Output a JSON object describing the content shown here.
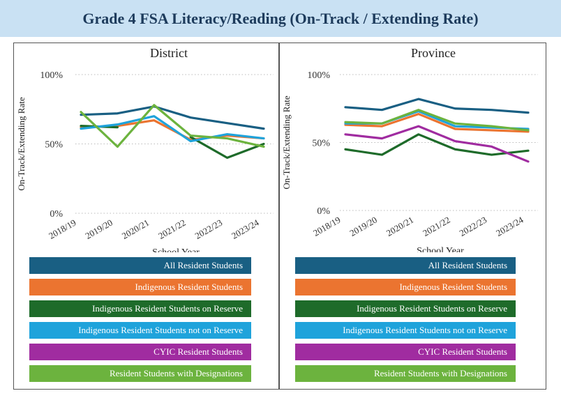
{
  "title": "Grade 4 FSA Literacy/Reading (On-Track / Extending Rate)",
  "legend": [
    {
      "name": "All Resident Students",
      "color": "#195f83"
    },
    {
      "name": "Indigenous Resident Students",
      "color": "#eb7430"
    },
    {
      "name": "Indigenous Resident Students on Reserve",
      "color": "#1e6b2a"
    },
    {
      "name": "Indigenous Resident Students not on Reserve",
      "color": "#1fa3db"
    },
    {
      "name": "CYIC Resident Students",
      "color": "#a02ca0"
    },
    {
      "name": "Resident Students with Designations",
      "color": "#6cb33e"
    }
  ],
  "chart_data": [
    {
      "type": "line",
      "title": "District",
      "xlabel": "School Year",
      "ylabel": "On-Track/Extending Rate",
      "categories": [
        "2018/19",
        "2019/20",
        "2020/21",
        "2021/22",
        "2022/23",
        "2023/24"
      ],
      "yticks": [
        "0%",
        "50%",
        "100%"
      ],
      "ylim": [
        0,
        100
      ],
      "series": [
        {
          "name": "All Resident Students",
          "color": "#195f83",
          "values": [
            71,
            72,
            77,
            69,
            65,
            61
          ]
        },
        {
          "name": "Indigenous Resident Students",
          "color": "#eb7430",
          "values": [
            62,
            63,
            67,
            53,
            56,
            54
          ]
        },
        {
          "name": "Indigenous Resident Students on Reserve",
          "color": "#1e6b2a",
          "values": [
            63,
            62,
            null,
            55,
            40,
            50
          ]
        },
        {
          "name": "Indigenous Resident Students not on Reserve",
          "color": "#1fa3db",
          "values": [
            61,
            64,
            70,
            52,
            57,
            54
          ]
        },
        {
          "name": "Resident Students with Designations",
          "color": "#6cb33e",
          "values": [
            73,
            48,
            78,
            56,
            54,
            48
          ]
        }
      ]
    },
    {
      "type": "line",
      "title": "Province",
      "xlabel": "School Year",
      "ylabel": "On-Track/Extending Rate",
      "categories": [
        "2018/19",
        "2019/20",
        "2020/21",
        "2021/22",
        "2022/23",
        "2023/24"
      ],
      "yticks": [
        "0%",
        "50%",
        "100%"
      ],
      "ylim": [
        0,
        100
      ],
      "series": [
        {
          "name": "All Resident Students",
          "color": "#195f83",
          "values": [
            76,
            74,
            82,
            75,
            74,
            72
          ]
        },
        {
          "name": "Indigenous Resident Students",
          "color": "#eb7430",
          "values": [
            63,
            62,
            71,
            60,
            59,
            58
          ]
        },
        {
          "name": "Indigenous Resident Students on Reserve",
          "color": "#1e6b2a",
          "values": [
            45,
            41,
            56,
            45,
            41,
            44
          ]
        },
        {
          "name": "Indigenous Resident Students not on Reserve",
          "color": "#1fa3db",
          "values": [
            64,
            64,
            73,
            62,
            61,
            60
          ]
        },
        {
          "name": "CYIC Resident Students",
          "color": "#a02ca0",
          "values": [
            56,
            53,
            62,
            51,
            47,
            36
          ]
        },
        {
          "name": "Resident Students with Designations",
          "color": "#6cb33e",
          "values": [
            65,
            64,
            74,
            64,
            62,
            59
          ]
        }
      ]
    }
  ]
}
